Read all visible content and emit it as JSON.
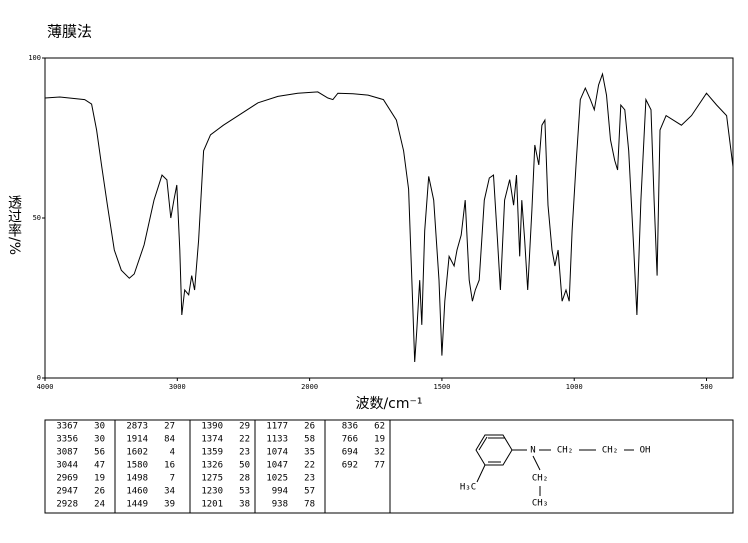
{
  "chart_data": {
    "type": "line",
    "title": "薄膜法",
    "x_label": "波数/cm⁻¹",
    "y_label": "透过率/%",
    "color": "#000000",
    "xlim": [
      4000,
      400
    ],
    "xticks": [
      4000,
      3000,
      2000,
      1500,
      1000,
      500
    ],
    "x_scale_break": {
      "at": 2000,
      "ratio": 2
    },
    "ylim": [
      0,
      100
    ],
    "yticks": [
      0,
      50,
      100
    ],
    "x": [
      4000,
      3888,
      3700,
      3648,
      3610,
      3573,
      3528,
      3476,
      3423,
      3363,
      3326,
      3251,
      3176,
      3116,
      3079,
      3049,
      3026,
      3004,
      2981,
      2966,
      2944,
      2914,
      2891,
      2869,
      2839,
      2801,
      2749,
      2652,
      2539,
      2390,
      2240,
      2090,
      1969,
      1931,
      1912,
      1893,
      1836,
      1779,
      1721,
      1672,
      1645,
      1626,
      1611,
      1603,
      1595,
      1584,
      1576,
      1565,
      1550,
      1531,
      1511,
      1500,
      1489,
      1473,
      1454,
      1443,
      1427,
      1412,
      1397,
      1385,
      1374,
      1359,
      1340,
      1321,
      1305,
      1290,
      1279,
      1263,
      1244,
      1229,
      1218,
      1206,
      1198,
      1187,
      1176,
      1160,
      1149,
      1134,
      1122,
      1111,
      1099,
      1084,
      1073,
      1061,
      1046,
      1031,
      1019,
      1008,
      992,
      977,
      958,
      939,
      924,
      908,
      893,
      878,
      863,
      847,
      836,
      824,
      809,
      794,
      775,
      763,
      748,
      729,
      710,
      698,
      687,
      676,
      653,
      595,
      557,
      500,
      462,
      424,
      400
    ],
    "values": [
      87.5,
      87.8,
      87,
      85.6,
      77.5,
      66.6,
      54,
      40,
      33.7,
      31.2,
      32.5,
      41.6,
      55.6,
      63.4,
      61.9,
      50,
      55.6,
      60.3,
      40,
      19.7,
      27.5,
      26,
      32,
      27.5,
      43,
      71,
      76,
      79,
      82,
      86,
      88,
      89,
      89.4,
      87.5,
      87,
      89,
      88.8,
      88.4,
      87,
      80.6,
      71,
      59,
      24,
      5,
      15,
      30.6,
      16.6,
      46,
      63,
      55.6,
      30.6,
      7,
      24,
      38,
      35,
      40,
      44.7,
      55.6,
      30.6,
      24,
      27.5,
      30.6,
      55.6,
      62.5,
      63.4,
      43,
      27.5,
      55.6,
      62,
      54,
      63.4,
      38,
      55.6,
      43,
      27.5,
      52.5,
      72.8,
      66.6,
      79,
      80.6,
      54,
      40,
      35,
      40,
      24,
      27.5,
      24,
      46,
      68,
      87,
      90.6,
      87,
      83.8,
      91.6,
      95,
      88.4,
      74.4,
      68,
      65,
      85.3,
      83.8,
      71,
      40,
      19.7,
      55.6,
      87,
      83.8,
      55.6,
      32,
      77.5,
      82,
      79,
      82,
      89,
      85.3,
      82,
      66
    ]
  },
  "peak_table": {
    "rows": [
      [
        3367,
        30
      ],
      [
        3356,
        30
      ],
      [
        3087,
        56
      ],
      [
        3044,
        47
      ],
      [
        2969,
        19
      ],
      [
        2947,
        26
      ],
      [
        2928,
        24
      ],
      [
        2873,
        27
      ],
      [
        1914,
        84
      ],
      [
        1602,
        4
      ],
      [
        1580,
        16
      ],
      [
        1498,
        7
      ],
      [
        1460,
        34
      ],
      [
        1449,
        39
      ],
      [
        1390,
        29
      ],
      [
        1374,
        22
      ],
      [
        1359,
        23
      ],
      [
        1326,
        50
      ],
      [
        1275,
        28
      ],
      [
        1230,
        53
      ],
      [
        1201,
        38
      ],
      [
        1177,
        26
      ],
      [
        1133,
        58
      ],
      [
        1074,
        35
      ],
      [
        1047,
        22
      ],
      [
        1025,
        23
      ],
      [
        994,
        57
      ],
      [
        938,
        78
      ],
      [
        836,
        62
      ],
      [
        766,
        19
      ],
      [
        694,
        32
      ],
      [
        692,
        77
      ]
    ]
  },
  "structure": {
    "n": "N",
    "ch2_a": "CH₂",
    "ch2_b": "CH₂",
    "oh": "OH",
    "h3c": "H₃C",
    "ch2_c": "CH₂",
    "ch3": "CH₃"
  }
}
